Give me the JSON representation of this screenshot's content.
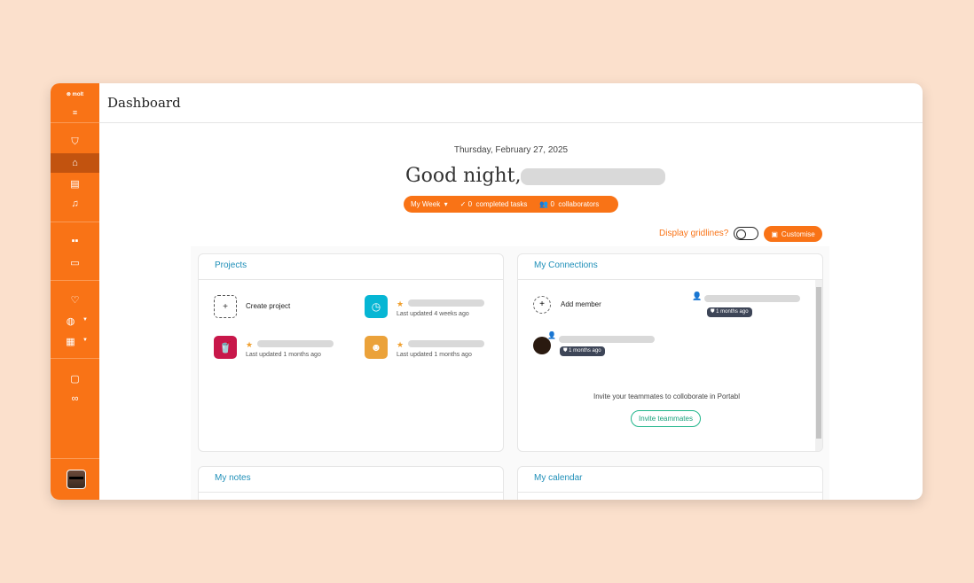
{
  "app": {
    "logo": "⊗ molt"
  },
  "header": {
    "title": "Dashboard"
  },
  "sidebar": {
    "items": [
      {
        "icon": "badge-check-icon"
      },
      {
        "icon": "home-icon",
        "active": true
      },
      {
        "icon": "clipboard-icon"
      },
      {
        "icon": "bell-icon"
      },
      {
        "icon": "apps-icon"
      },
      {
        "icon": "folder-icon"
      },
      {
        "icon": "heart-plus-icon"
      },
      {
        "icon": "palette-icon"
      },
      {
        "icon": "calendar-icon"
      },
      {
        "icon": "feedback-icon"
      },
      {
        "icon": "link-icon"
      }
    ]
  },
  "main": {
    "date": "Thursday, February 27, 2025",
    "greeting": "Good night,",
    "week": {
      "selector": "My Week",
      "completed_count": "0",
      "completed_label": "completed tasks",
      "collab_count": "0",
      "collab_label": "collaborators"
    },
    "gridlines_label": "Display gridlines?",
    "gridlines_on": false,
    "customise_label": "Customise"
  },
  "projects": {
    "title": "Projects",
    "create_label": "Create project",
    "items": [
      {
        "updated": "Last updated 4 weeks ago",
        "color": "#06b6d4",
        "icon": "clock-icon"
      },
      {
        "updated": "Last updated 1 months ago",
        "color": "#c8174a",
        "icon": "drink-icon"
      },
      {
        "updated": "Last updated 1 months ago",
        "color": "#eba23a",
        "icon": "head-heart-icon"
      }
    ]
  },
  "connections": {
    "title": "My Connections",
    "add_label": "Add member",
    "members": [
      {
        "badge": "1 months ago"
      },
      {
        "badge": "1 months ago"
      }
    ],
    "invite_text": "Invite your teammates to colloborate in Portabl",
    "invite_button": "Invite teammates"
  },
  "notes": {
    "title": "My notes"
  },
  "calendar": {
    "title": "My calendar"
  },
  "colors": {
    "accent": "#f97316",
    "background": "#fbe0cc",
    "link": "#1f8fb8"
  }
}
